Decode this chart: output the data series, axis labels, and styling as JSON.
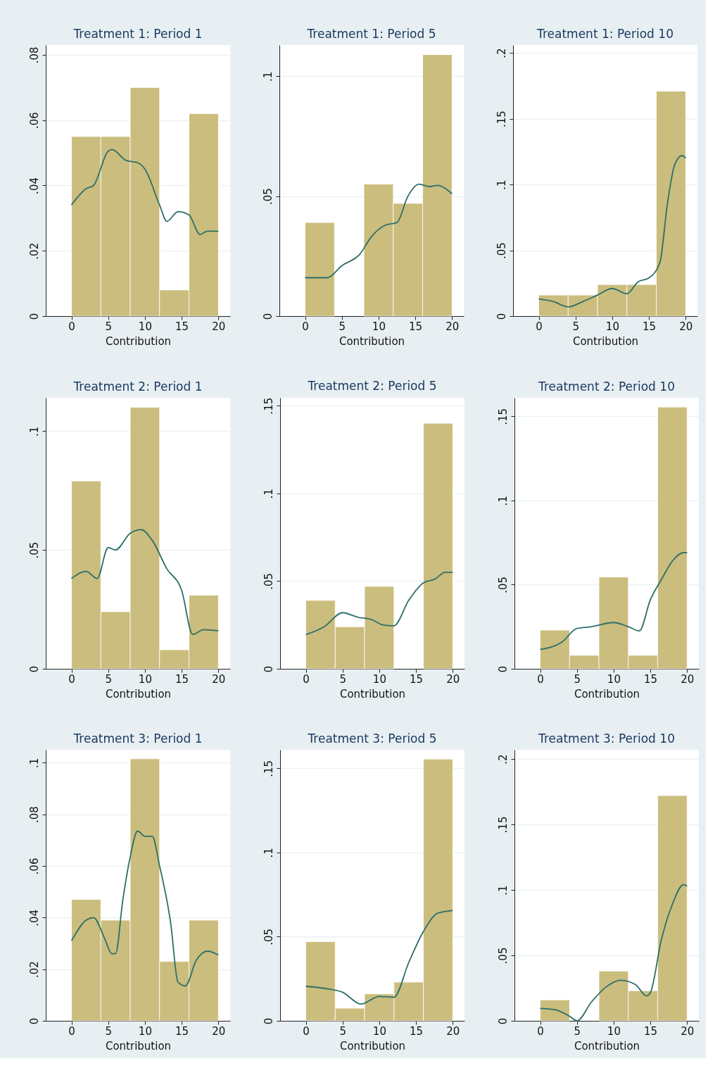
{
  "chart_data": [
    {
      "type": "histogram",
      "title": "Treatment 1: Period 1",
      "xlabel": "Contribution",
      "xlim": [
        -3.5,
        21.6
      ],
      "xticks": [
        0,
        5,
        10,
        15,
        20
      ],
      "ylim": [
        0,
        0.083
      ],
      "yticks": [
        0,
        {
          "value": 0.02,
          "label": ".02"
        },
        {
          "value": 0.04,
          "label": ".04"
        },
        {
          "value": 0.06,
          "label": ".06"
        },
        {
          "value": 0.08,
          "label": ".08"
        }
      ],
      "grid": "y",
      "bins": [
        0,
        4,
        8,
        12,
        16,
        20
      ],
      "values": [
        0.055,
        0.055,
        0.07,
        0.008,
        0.062
      ],
      "color": "#cbbd7d",
      "series": [
        {
          "type": "line",
          "color": "#2d6f6a",
          "x": [
            0,
            2,
            3,
            5,
            5.5,
            7.5,
            9,
            10,
            12,
            13,
            14.5,
            16,
            17.5,
            18.5,
            20
          ],
          "values": [
            0.034,
            0.039,
            0.04,
            0.0505,
            0.051,
            0.0476,
            0.047,
            0.045,
            0.034,
            0.029,
            0.032,
            0.031,
            0.025,
            0.026,
            0.026
          ]
        }
      ]
    },
    {
      "type": "histogram",
      "title": "Treatment 1: Period 5",
      "xlabel": "Contribution",
      "xlim": [
        -3.5,
        21.6
      ],
      "xticks": [
        0,
        5,
        10,
        15,
        20
      ],
      "ylim": [
        0,
        0.113
      ],
      "yticks": [
        0,
        {
          "value": 0.05,
          "label": ".05"
        },
        {
          "value": 0.1,
          "label": ".1"
        }
      ],
      "grid": "y",
      "bins": [
        0,
        4,
        8,
        12,
        16,
        20
      ],
      "values": [
        0.039,
        0,
        0.055,
        0.047,
        0.109
      ],
      "color": "#cbbd7d",
      "series": [
        {
          "type": "line",
          "color": "#2d6f6a",
          "x": [
            0,
            3,
            5,
            7.5,
            9,
            11,
            12.5,
            14,
            15.5,
            17,
            18,
            20
          ],
          "values": [
            0.016,
            0.016,
            0.021,
            0.026,
            0.033,
            0.038,
            0.039,
            0.05,
            0.055,
            0.054,
            0.0545,
            0.051
          ]
        }
      ]
    },
    {
      "type": "histogram",
      "title": "Treatment 1: Period 10",
      "xlabel": "Contribution",
      "xlim": [
        -3.5,
        21.6
      ],
      "xticks": [
        0,
        5,
        10,
        15,
        20
      ],
      "ylim": [
        0,
        0.206
      ],
      "yticks": [
        0,
        {
          "value": 0.05,
          "label": ".05"
        },
        {
          "value": 0.1,
          "label": ".1"
        },
        {
          "value": 0.15,
          "label": ".15"
        },
        {
          "value": 0.2,
          "label": ".2"
        }
      ],
      "grid": "y",
      "bins": [
        0,
        4,
        8,
        12,
        16,
        20
      ],
      "values": [
        0.016,
        0.016,
        0.024,
        0.024,
        0.171
      ],
      "color": "#cbbd7d",
      "series": [
        {
          "type": "line",
          "color": "#2d6f6a",
          "x": [
            0,
            2,
            4,
            6,
            8,
            10,
            12,
            13.5,
            15,
            16.5,
            17.5,
            18.5,
            19.5,
            20
          ],
          "values": [
            0.013,
            0.011,
            0.007,
            0.011,
            0.016,
            0.021,
            0.017,
            0.026,
            0.029,
            0.041,
            0.085,
            0.115,
            0.122,
            0.12
          ]
        }
      ]
    },
    {
      "type": "histogram",
      "title": "Treatment 2: Period 1",
      "xlabel": "Contribution",
      "xlim": [
        -3.5,
        21.6
      ],
      "xticks": [
        0,
        5,
        10,
        15,
        20
      ],
      "ylim": [
        0,
        0.114
      ],
      "yticks": [
        0,
        {
          "value": 0.05,
          "label": ".05"
        },
        {
          "value": 0.1,
          "label": ".1"
        }
      ],
      "grid": "y",
      "bins": [
        0,
        4,
        8,
        12,
        16,
        20
      ],
      "values": [
        0.079,
        0.024,
        0.11,
        0.008,
        0.031
      ],
      "color": "#cbbd7d",
      "series": [
        {
          "type": "line",
          "color": "#2d6f6a",
          "x": [
            0,
            2,
            3.5,
            5,
            6,
            8,
            9.5,
            11,
            13,
            15,
            16.5,
            18,
            20
          ],
          "values": [
            0.038,
            0.041,
            0.038,
            0.051,
            0.05,
            0.057,
            0.0585,
            0.054,
            0.042,
            0.033,
            0.0145,
            0.0165,
            0.016
          ]
        }
      ]
    },
    {
      "type": "histogram",
      "title": "Treatment 2: Period 5",
      "xlabel": "Contribution",
      "xlim": [
        -3.5,
        21.6
      ],
      "xticks": [
        0,
        5,
        10,
        15,
        20
      ],
      "ylim": [
        0,
        0.1545
      ],
      "yticks": [
        0,
        {
          "value": 0.05,
          "label": ".05"
        },
        {
          "value": 0.1,
          "label": ".1"
        },
        {
          "value": 0.15,
          "label": ".15"
        }
      ],
      "grid": "y",
      "bins": [
        0,
        4,
        8,
        12,
        16,
        20
      ],
      "values": [
        0.039,
        0.024,
        0.047,
        0,
        0.14
      ],
      "color": "#cbbd7d",
      "series": [
        {
          "type": "line",
          "color": "#2d6f6a",
          "x": [
            0,
            2.5,
            5,
            7,
            9,
            10.5,
            12,
            14,
            16,
            17.5,
            19,
            20
          ],
          "values": [
            0.0195,
            0.024,
            0.032,
            0.0295,
            0.028,
            0.025,
            0.0245,
            0.039,
            0.049,
            0.051,
            0.055,
            0.055
          ]
        }
      ]
    },
    {
      "type": "histogram",
      "title": "Treatment 2: Period 10",
      "xlabel": "Contribution",
      "xlim": [
        -3.5,
        21.6
      ],
      "xticks": [
        0,
        5,
        10,
        15,
        20
      ],
      "ylim": [
        0,
        0.161
      ],
      "yticks": [
        0,
        {
          "value": 0.05,
          "label": ".05"
        },
        {
          "value": 0.1,
          "label": ".1"
        },
        {
          "value": 0.15,
          "label": ".15"
        }
      ],
      "grid": "y",
      "bins": [
        0,
        4,
        8,
        12,
        16,
        20
      ],
      "values": [
        0.023,
        0.008,
        0.0545,
        0.008,
        0.1555
      ],
      "color": "#cbbd7d",
      "series": [
        {
          "type": "line",
          "color": "#2d6f6a",
          "x": [
            0,
            3,
            5,
            7,
            10,
            12,
            13.5,
            15,
            16.5,
            18,
            19.5,
            20
          ],
          "values": [
            0.0115,
            0.016,
            0.024,
            0.025,
            0.0275,
            0.025,
            0.0225,
            0.041,
            0.053,
            0.064,
            0.069,
            0.069
          ]
        }
      ]
    },
    {
      "type": "histogram",
      "title": "Treatment 3: Period 1",
      "xlabel": "Contribution",
      "xlim": [
        -3.5,
        21.6
      ],
      "xticks": [
        0,
        5,
        10,
        15,
        20
      ],
      "ylim": [
        0,
        0.105
      ],
      "yticks": [
        0,
        {
          "value": 0.02,
          "label": ".02"
        },
        {
          "value": 0.04,
          "label": ".04"
        },
        {
          "value": 0.06,
          "label": ".06"
        },
        {
          "value": 0.08,
          "label": ".08"
        },
        {
          "value": 0.1,
          "label": ".1"
        }
      ],
      "grid": "y",
      "bins": [
        0,
        4,
        8,
        12,
        16,
        20
      ],
      "values": [
        0.047,
        0.039,
        0.1015,
        0.023,
        0.039
      ],
      "color": "#cbbd7d",
      "series": [
        {
          "type": "line",
          "color": "#2d6f6a",
          "x": [
            0,
            2,
            3,
            4.5,
            5.5,
            6,
            7,
            8,
            9,
            10,
            11,
            12,
            13.5,
            14.5,
            15.5,
            17,
            18.5,
            20
          ],
          "values": [
            0.031,
            0.039,
            0.04,
            0.032,
            0.026,
            0.026,
            0.047,
            0.0635,
            0.0735,
            0.0715,
            0.0715,
            0.06,
            0.038,
            0.015,
            0.0135,
            0.0235,
            0.027,
            0.0255
          ]
        }
      ]
    },
    {
      "type": "histogram",
      "title": "Treatment 3: Period 5",
      "xlabel": "Contribution",
      "xlim": [
        -3.5,
        21.6
      ],
      "xticks": [
        0,
        5,
        10,
        15,
        20
      ],
      "ylim": [
        0,
        0.161
      ],
      "yticks": [
        0,
        {
          "value": 0.05,
          "label": ".05"
        },
        {
          "value": 0.1,
          "label": ".1"
        },
        {
          "value": 0.15,
          "label": ".15"
        }
      ],
      "grid": "y",
      "bins": [
        0,
        4,
        8,
        12,
        16,
        20
      ],
      "values": [
        0.047,
        0.0075,
        0.016,
        0.023,
        0.1555
      ],
      "color": "#cbbd7d",
      "series": [
        {
          "type": "line",
          "color": "#2d6f6a",
          "x": [
            0,
            3,
            5,
            7.5,
            10,
            12,
            14,
            16,
            18,
            20
          ],
          "values": [
            0.0205,
            0.019,
            0.017,
            0.01,
            0.0145,
            0.014,
            0.0345,
            0.053,
            0.064,
            0.0655
          ]
        }
      ]
    },
    {
      "type": "histogram",
      "title": "Treatment 3: Period 10",
      "xlabel": "Contribution",
      "xlim": [
        -3.5,
        21.6
      ],
      "xticks": [
        0,
        5,
        10,
        15,
        20
      ],
      "ylim": [
        0,
        0.207
      ],
      "yticks": [
        0,
        {
          "value": 0.05,
          "label": ".05"
        },
        {
          "value": 0.1,
          "label": ".1"
        },
        {
          "value": 0.15,
          "label": ".15"
        },
        {
          "value": 0.2,
          "label": ".2"
        }
      ],
      "grid": "y",
      "bins": [
        0,
        4,
        8,
        12,
        16,
        20
      ],
      "values": [
        0.016,
        0,
        0.038,
        0.023,
        0.172
      ],
      "color": "#cbbd7d",
      "series": [
        {
          "type": "line",
          "color": "#2d6f6a",
          "x": [
            0,
            2,
            4,
            5,
            7,
            9,
            11,
            13,
            14.5,
            15,
            16.5,
            18,
            19.5,
            20
          ],
          "values": [
            0.0095,
            0.0085,
            0.0035,
            0,
            0.0145,
            0.026,
            0.031,
            0.0275,
            0.019,
            0.0215,
            0.062,
            0.089,
            0.104,
            0.103
          ]
        }
      ]
    }
  ]
}
